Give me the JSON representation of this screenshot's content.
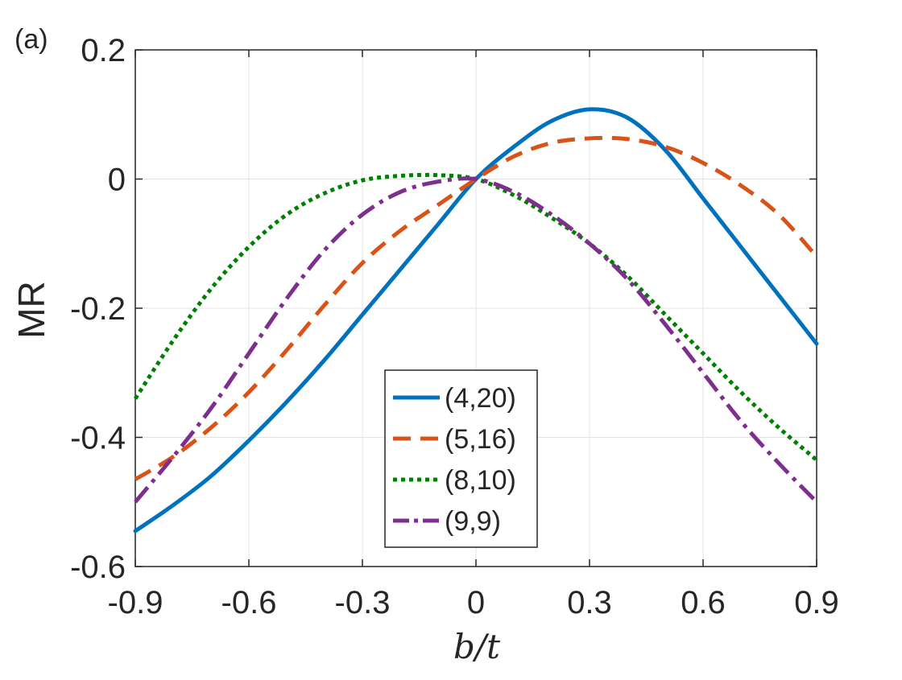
{
  "chart_data": {
    "type": "line",
    "panel_label": "(a)",
    "title": "",
    "xlabel": "b/t",
    "ylabel": "MR",
    "xlim": [
      -0.9,
      0.9
    ],
    "ylim": [
      -0.6,
      0.2
    ],
    "xticks": [
      -0.9,
      -0.6,
      -0.3,
      0,
      0.3,
      0.6,
      0.9
    ],
    "xtick_labels": [
      "-0.9",
      "-0.6",
      "-0.3",
      "0",
      "0.3",
      "0.6",
      "0.9"
    ],
    "yticks": [
      0.2,
      0,
      -0.2,
      -0.4,
      -0.6
    ],
    "ytick_labels": [
      "0.2",
      "0",
      "-0.2",
      "-0.4",
      "-0.6"
    ],
    "grid": true,
    "legend_position": "bottom-center",
    "series": [
      {
        "name": "(4,20)",
        "color": "#0072BD",
        "style": "solid",
        "x": [
          -0.9,
          -0.8,
          -0.7,
          -0.6,
          -0.5,
          -0.4,
          -0.3,
          -0.2,
          -0.1,
          0,
          0.1,
          0.2,
          0.3,
          0.4,
          0.5,
          0.6,
          0.7,
          0.8,
          0.9
        ],
        "y": [
          -0.545,
          -0.505,
          -0.46,
          -0.405,
          -0.345,
          -0.28,
          -0.21,
          -0.14,
          -0.07,
          0,
          0.05,
          0.09,
          0.108,
          0.095,
          0.045,
          -0.03,
          -0.105,
          -0.18,
          -0.255
        ]
      },
      {
        "name": "(5,16)",
        "color": "#D95319",
        "style": "dashed",
        "x": [
          -0.9,
          -0.8,
          -0.7,
          -0.6,
          -0.5,
          -0.4,
          -0.3,
          -0.2,
          -0.1,
          0,
          0.1,
          0.2,
          0.3,
          0.4,
          0.5,
          0.6,
          0.7,
          0.8,
          0.9
        ],
        "y": [
          -0.465,
          -0.43,
          -0.385,
          -0.33,
          -0.265,
          -0.195,
          -0.13,
          -0.08,
          -0.04,
          0,
          0.035,
          0.056,
          0.063,
          0.062,
          0.05,
          0.025,
          -0.01,
          -0.055,
          -0.12
        ]
      },
      {
        "name": "(8,10)",
        "color": "#008000",
        "style": "dotted",
        "x": [
          -0.9,
          -0.8,
          -0.7,
          -0.6,
          -0.5,
          -0.4,
          -0.3,
          -0.2,
          -0.1,
          0,
          0.1,
          0.2,
          0.3,
          0.4,
          0.5,
          0.6,
          0.7,
          0.8,
          0.9
        ],
        "y": [
          -0.34,
          -0.25,
          -0.17,
          -0.105,
          -0.055,
          -0.022,
          -0.002,
          0.005,
          0.006,
          0,
          -0.025,
          -0.06,
          -0.1,
          -0.15,
          -0.21,
          -0.27,
          -0.33,
          -0.385,
          -0.435
        ]
      },
      {
        "name": "(9,9)",
        "color": "#7E2F8E",
        "style": "dashdot",
        "x": [
          -0.9,
          -0.8,
          -0.7,
          -0.6,
          -0.5,
          -0.4,
          -0.3,
          -0.2,
          -0.1,
          0,
          0.1,
          0.2,
          0.3,
          0.4,
          0.5,
          0.6,
          0.7,
          0.8,
          0.9
        ],
        "y": [
          -0.5,
          -0.43,
          -0.355,
          -0.27,
          -0.185,
          -0.11,
          -0.055,
          -0.02,
          -0.004,
          0,
          -0.02,
          -0.055,
          -0.1,
          -0.155,
          -0.225,
          -0.3,
          -0.375,
          -0.44,
          -0.5
        ]
      }
    ]
  }
}
